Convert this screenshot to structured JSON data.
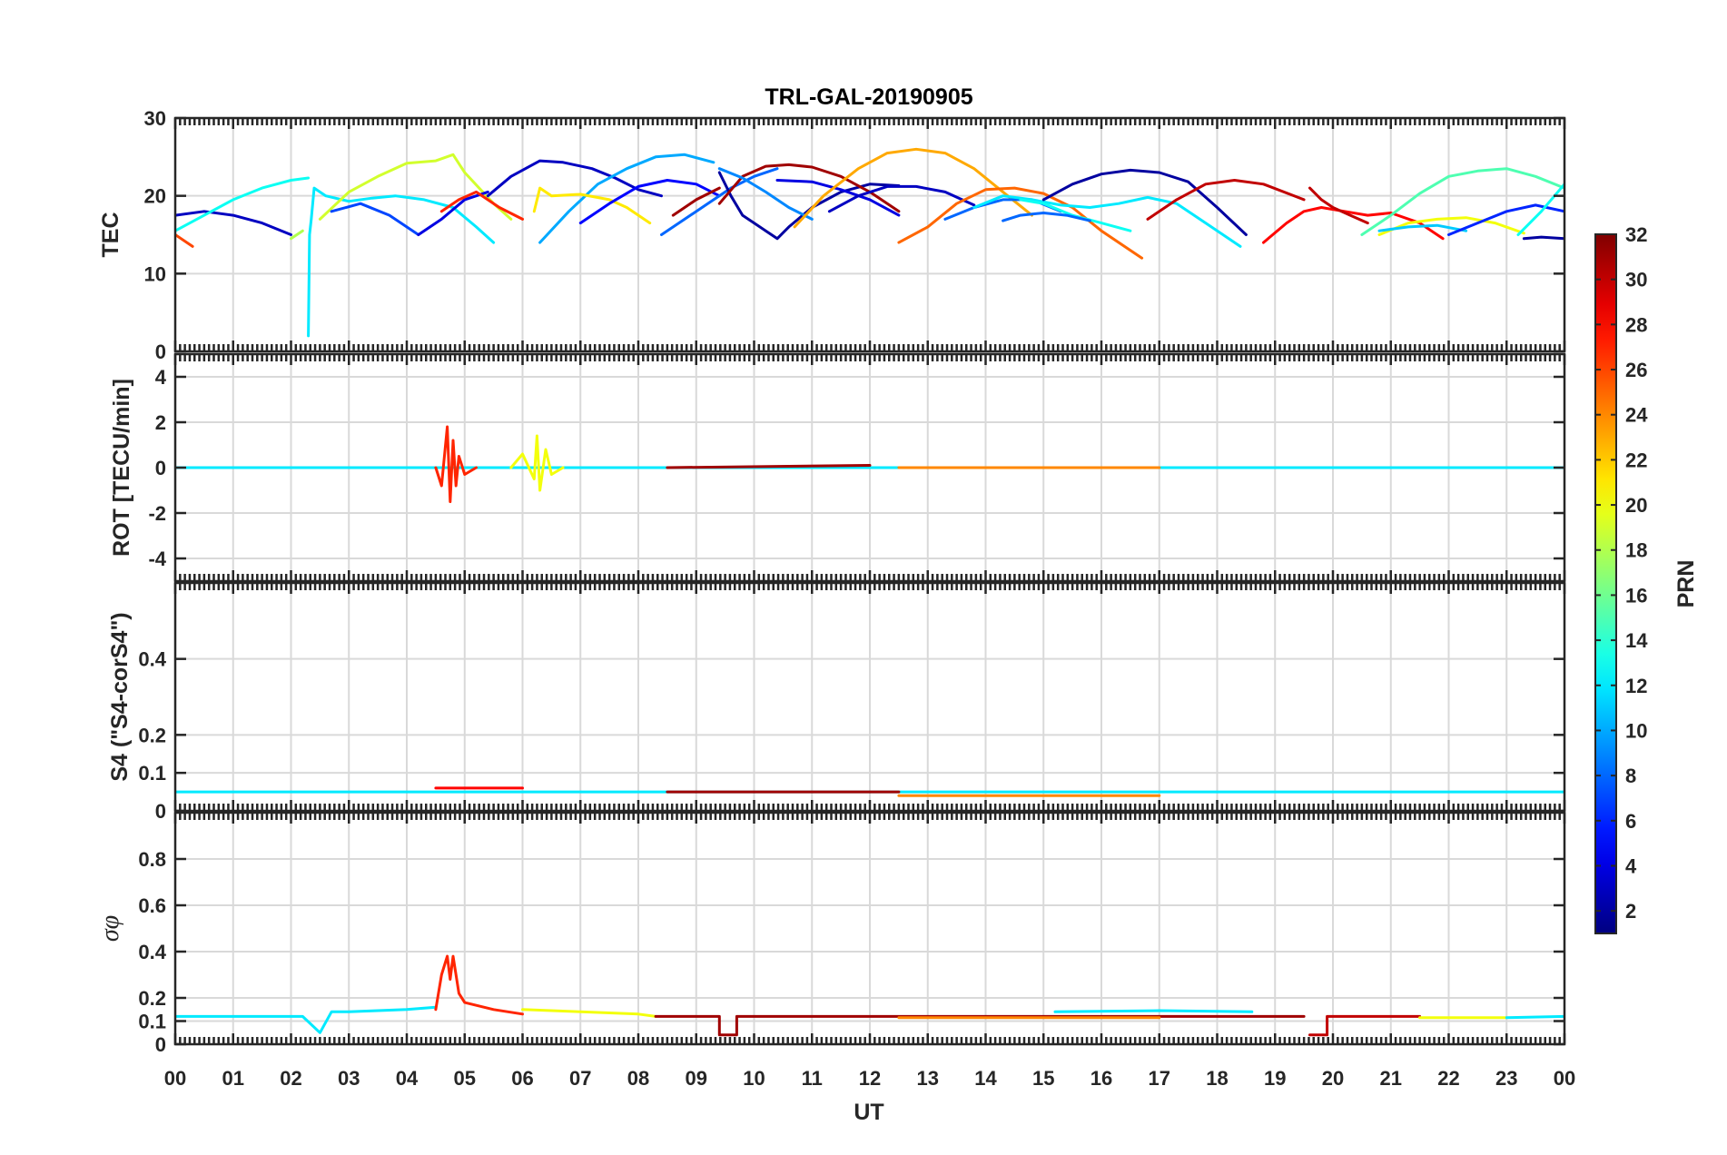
{
  "chart_data": {
    "type": "line",
    "title": "TRL-GAL-20190905",
    "xlabel": "UT",
    "x_ticks": [
      "00",
      "01",
      "02",
      "03",
      "04",
      "05",
      "06",
      "07",
      "08",
      "09",
      "10",
      "11",
      "12",
      "13",
      "14",
      "15",
      "16",
      "17",
      "18",
      "19",
      "20",
      "21",
      "22",
      "23",
      "00"
    ],
    "xlim": [
      0,
      24
    ],
    "colorbar": {
      "label": "PRN",
      "ticks": [
        "2",
        "4",
        "6",
        "8",
        "10",
        "12",
        "14",
        "16",
        "18",
        "20",
        "22",
        "24",
        "26",
        "28",
        "30",
        "32"
      ],
      "range": [
        1,
        32
      ],
      "colormap": "jet"
    },
    "panels": [
      {
        "id": "tec",
        "ylabel": "TEC",
        "ylim": [
          0,
          30
        ],
        "yticks": [
          "0",
          "10",
          "20",
          "30"
        ],
        "series": [
          {
            "prn": 26,
            "x": [
              0,
              0.3
            ],
            "y": [
              15,
              13.5
            ]
          },
          {
            "prn": 3,
            "x": [
              0,
              0.5,
              1.0,
              1.5,
              2.0
            ],
            "y": [
              17.5,
              18,
              17.5,
              16.5,
              15
            ]
          },
          {
            "prn": 13,
            "x": [
              0,
              0.5,
              1.0,
              1.5,
              2.0,
              2.3
            ],
            "y": [
              15.5,
              17.5,
              19.5,
              21,
              22,
              22.3
            ]
          },
          {
            "prn": 18,
            "x": [
              2.0,
              2.2
            ],
            "y": [
              14.5,
              15.5
            ]
          },
          {
            "prn": 12,
            "x": [
              2.3,
              2.32,
              2.35,
              2.4,
              2.6,
              3.0,
              3.4,
              3.8,
              4.3,
              4.8,
              5.2,
              5.5
            ],
            "y": [
              2,
              15,
              17,
              21,
              20,
              19.3,
              19.7,
              20,
              19.5,
              18.5,
              16,
              14
            ]
          },
          {
            "prn": 19,
            "x": [
              2.5,
              3.0,
              3.5,
              4.0,
              4.5,
              4.8,
              5.0,
              5.5,
              5.8
            ],
            "y": [
              17,
              20.5,
              22.5,
              24.2,
              24.5,
              25.3,
              23,
              19,
              17
            ]
          },
          {
            "prn": 7,
            "x": [
              2.7,
              3.2,
              3.7,
              4.2
            ],
            "y": [
              18,
              19,
              17.5,
              15
            ]
          },
          {
            "prn": 4,
            "x": [
              4.2,
              4.6,
              5.0,
              5.4
            ],
            "y": [
              15,
              17,
              19.5,
              20.5
            ]
          },
          {
            "prn": 27,
            "x": [
              4.6,
              4.9,
              5.2,
              5.6,
              6.0
            ],
            "y": [
              18,
              19.5,
              20.5,
              18.5,
              17
            ]
          },
          {
            "prn": 3,
            "x": [
              5.4,
              5.8,
              6.3,
              6.7,
              7.2,
              7.6,
              8.0,
              8.4
            ],
            "y": [
              20,
              22.5,
              24.5,
              24.3,
              23.5,
              22.3,
              20.8,
              20
            ]
          },
          {
            "prn": 10,
            "x": [
              6.3,
              6.8,
              7.3,
              7.8,
              8.3,
              8.8,
              9.3
            ],
            "y": [
              14,
              18,
              21.5,
              23.5,
              25,
              25.3,
              24.3
            ]
          },
          {
            "prn": 21,
            "x": [
              6.2,
              6.3,
              6.5,
              7.0,
              7.5,
              7.8,
              8.2
            ],
            "y": [
              18,
              21,
              20,
              20.2,
              19.5,
              18.5,
              16.5
            ]
          },
          {
            "prn": 5,
            "x": [
              7.0,
              7.5,
              8.0,
              8.5,
              9.0,
              9.4
            ],
            "y": [
              16.5,
              19,
              21.2,
              22,
              21.5,
              20
            ]
          },
          {
            "prn": 8,
            "x": [
              8.4,
              8.8,
              9.2,
              9.6,
              10.0,
              10.4
            ],
            "y": [
              15,
              17,
              19,
              21,
              22.5,
              23.5
            ]
          },
          {
            "prn": 31,
            "x": [
              8.6,
              9.0,
              9.4
            ],
            "y": [
              17.5,
              19.5,
              21
            ]
          },
          {
            "prn": 2,
            "x": [
              9.4,
              9.6,
              9.8,
              10.0,
              10.2,
              10.4,
              10.6,
              11.0,
              11.5,
              12.0,
              12.5
            ],
            "y": [
              23,
              20,
              17.5,
              16.5,
              15.5,
              14.5,
              16,
              18.5,
              20.5,
              21.5,
              21.3
            ]
          },
          {
            "prn": 31,
            "x": [
              9.4,
              9.8,
              10.2,
              10.6,
              11.0,
              11.5,
              12.0,
              12.5
            ],
            "y": [
              19,
              22.5,
              23.8,
              24,
              23.7,
              22.5,
              20.5,
              18
            ]
          },
          {
            "prn": 9,
            "x": [
              9.4,
              9.8,
              10.2,
              10.6,
              11.0
            ],
            "y": [
              23.5,
              22.3,
              20.5,
              18.5,
              17
            ]
          },
          {
            "prn": 4,
            "x": [
              10.4,
              11.0,
              11.5,
              12.0,
              12.5
            ],
            "y": [
              22,
              21.8,
              20.8,
              19.5,
              17.5
            ]
          },
          {
            "prn": 23,
            "x": [
              10.7,
              11.2,
              11.8,
              12.3,
              12.8,
              13.3,
              13.8,
              14.3,
              14.8
            ],
            "y": [
              16,
              20,
              23.5,
              25.5,
              26,
              25.5,
              23.5,
              20.5,
              17.5
            ]
          },
          {
            "prn": 3,
            "x": [
              11.3,
              11.8,
              12.3,
              12.8,
              13.3,
              13.8
            ],
            "y": [
              18,
              20,
              21.2,
              21.2,
              20.5,
              18.8
            ]
          },
          {
            "prn": 25,
            "x": [
              12.5,
              13.0,
              13.5,
              14.0,
              14.5,
              15.0,
              15.5,
              16.0,
              16.7
            ],
            "y": [
              14,
              16,
              19,
              20.8,
              21,
              20.3,
              18.5,
              15.5,
              12
            ]
          },
          {
            "prn": 8,
            "x": [
              13.3,
              13.8,
              14.3,
              14.8,
              15.3
            ],
            "y": [
              17,
              18.5,
              19.5,
              19.5,
              18
            ]
          },
          {
            "prn": 12,
            "x": [
              13.8,
              14.3,
              14.8,
              15.3,
              15.8,
              16.3,
              16.8,
              17.3,
              17.8,
              18.4
            ],
            "y": [
              18.5,
              20,
              19.5,
              18.8,
              18.5,
              19,
              19.8,
              19,
              16.5,
              13.5
            ]
          },
          {
            "prn": 13,
            "x": [
              14.6,
              15.0,
              15.5,
              16.0,
              16.5
            ],
            "y": [
              19.5,
              19,
              17.5,
              16.5,
              15.5
            ]
          },
          {
            "prn": 2,
            "x": [
              15.0,
              15.5,
              16.0,
              16.5,
              17.0,
              17.5,
              18.0,
              18.5
            ],
            "y": [
              19.5,
              21.5,
              22.8,
              23.3,
              23,
              21.8,
              18.5,
              15
            ]
          },
          {
            "prn": 8,
            "x": [
              14.3,
              14.6,
              15.0,
              15.4,
              15.8
            ],
            "y": [
              16.8,
              17.5,
              17.8,
              17.5,
              16.8
            ]
          },
          {
            "prn": 30,
            "x": [
              16.8,
              17.3,
              17.8,
              18.3,
              18.8,
              19.5
            ],
            "y": [
              17,
              19.5,
              21.5,
              22,
              21.5,
              19.5
            ]
          },
          {
            "prn": 28,
            "x": [
              18.8,
              19.2,
              19.5,
              19.8,
              20.2,
              20.6,
              21.0,
              21.5,
              21.9
            ],
            "y": [
              14,
              16.5,
              18,
              18.5,
              18,
              17.5,
              17.8,
              16.5,
              14.5
            ]
          },
          {
            "prn": 30,
            "x": [
              19.6,
              19.8,
              20.0,
              20.3,
              20.6
            ],
            "y": [
              21,
              19.5,
              18.5,
              17.5,
              16.5
            ]
          },
          {
            "prn": 15,
            "x": [
              20.5,
              21.0,
              21.5,
              22.0,
              22.5,
              23.0,
              23.5,
              24.0
            ],
            "y": [
              15,
              17.5,
              20.3,
              22.5,
              23.2,
              23.5,
              22.5,
              21
            ]
          },
          {
            "prn": 20,
            "x": [
              20.8,
              21.3,
              21.8,
              22.3,
              22.8,
              23.3
            ],
            "y": [
              15,
              16.5,
              17,
              17.2,
              16.5,
              15.2
            ]
          },
          {
            "prn": 11,
            "x": [
              20.8,
              21.3,
              21.8,
              22.3
            ],
            "y": [
              15.5,
              16,
              16.2,
              15.5
            ]
          },
          {
            "prn": 6,
            "x": [
              22.0,
              22.5,
              23.0,
              23.5,
              24.0
            ],
            "y": [
              15,
              16.5,
              18,
              18.8,
              18
            ]
          },
          {
            "prn": 13,
            "x": [
              23.2,
              23.6,
              24.0
            ],
            "y": [
              15,
              18,
              21.5
            ]
          },
          {
            "prn": 2,
            "x": [
              23.3,
              23.6,
              24.0
            ],
            "y": [
              14.5,
              14.7,
              14.5
            ]
          }
        ]
      },
      {
        "id": "rot",
        "ylabel": "ROT [TECU/min]",
        "ylim": [
          -5,
          5
        ],
        "yticks": [
          "-4",
          "-2",
          "0",
          "2",
          "4"
        ],
        "series": [
          {
            "prn": 12,
            "x": [
              0,
              24
            ],
            "y": [
              0,
              0
            ]
          },
          {
            "prn": 27,
            "x": [
              4.5,
              4.6,
              4.7,
              4.75,
              4.8,
              4.85,
              4.9,
              5.0,
              5.2
            ],
            "y": [
              0,
              -0.8,
              1.8,
              -1.5,
              1.2,
              -0.8,
              0.5,
              -0.3,
              0
            ]
          },
          {
            "prn": 20,
            "x": [
              5.8,
              6.0,
              6.2,
              6.25,
              6.3,
              6.4,
              6.5,
              6.7
            ],
            "y": [
              0,
              0.6,
              -0.5,
              1.4,
              -1.0,
              0.8,
              -0.3,
              0
            ]
          },
          {
            "prn": 31,
            "x": [
              8.5,
              12.0
            ],
            "y": [
              0,
              0.1
            ]
          },
          {
            "prn": 24,
            "x": [
              12.5,
              17.0
            ],
            "y": [
              0,
              0
            ]
          }
        ]
      },
      {
        "id": "s4",
        "ylabel": "S4 (\"S4-corS4\")",
        "ylim": [
          0,
          0.6
        ],
        "yticks": [
          "0",
          "0.1",
          "0.2",
          "0.4"
        ],
        "series": [
          {
            "prn": 12,
            "x": [
              0,
              24
            ],
            "y": [
              0.05,
              0.05
            ]
          },
          {
            "prn": 28,
            "x": [
              4.5,
              6.0
            ],
            "y": [
              0.06,
              0.06
            ]
          },
          {
            "prn": 31,
            "x": [
              8.5,
              12.5
            ],
            "y": [
              0.05,
              0.05
            ]
          },
          {
            "prn": 24,
            "x": [
              12.5,
              17.0
            ],
            "y": [
              0.04,
              0.04
            ]
          }
        ]
      },
      {
        "id": "sigma_phi",
        "ylabel": "σφ",
        "ylim": [
          0,
          1
        ],
        "yticks": [
          "0",
          "0.1",
          "0.2",
          "0.4",
          "0.6",
          "0.8"
        ],
        "series": [
          {
            "prn": 12,
            "x": [
              0,
              2.2,
              2.5,
              2.7,
              3.0,
              4.0,
              4.5
            ],
            "y": [
              0.12,
              0.12,
              0.05,
              0.14,
              0.14,
              0.15,
              0.16
            ]
          },
          {
            "prn": 27,
            "x": [
              4.5,
              4.6,
              4.7,
              4.75,
              4.8,
              4.9,
              5.0,
              5.5,
              6.0
            ],
            "y": [
              0.15,
              0.3,
              0.38,
              0.28,
              0.38,
              0.22,
              0.18,
              0.15,
              0.13
            ]
          },
          {
            "prn": 20,
            "x": [
              6.0,
              7.0,
              8.0,
              8.3
            ],
            "y": [
              0.15,
              0.14,
              0.13,
              0.12
            ]
          },
          {
            "prn": 31,
            "x": [
              8.3,
              9.4,
              9.4,
              9.7,
              9.7,
              19.5
            ],
            "y": [
              0.12,
              0.12,
              0.04,
              0.04,
              0.12,
              0.12
            ]
          },
          {
            "prn": 24,
            "x": [
              12.5,
              17.0
            ],
            "y": [
              0.115,
              0.115
            ]
          },
          {
            "prn": 12,
            "x": [
              15.2,
              17.0,
              18.6
            ],
            "y": [
              0.14,
              0.145,
              0.14
            ]
          },
          {
            "prn": 30,
            "x": [
              19.6,
              19.9,
              19.9,
              21.5
            ],
            "y": [
              0.04,
              0.04,
              0.12,
              0.12
            ]
          },
          {
            "prn": 20,
            "x": [
              21.5,
              23.0
            ],
            "y": [
              0.115,
              0.115
            ]
          },
          {
            "prn": 12,
            "x": [
              23.0,
              24.0
            ],
            "y": [
              0.115,
              0.12
            ]
          }
        ]
      }
    ]
  }
}
